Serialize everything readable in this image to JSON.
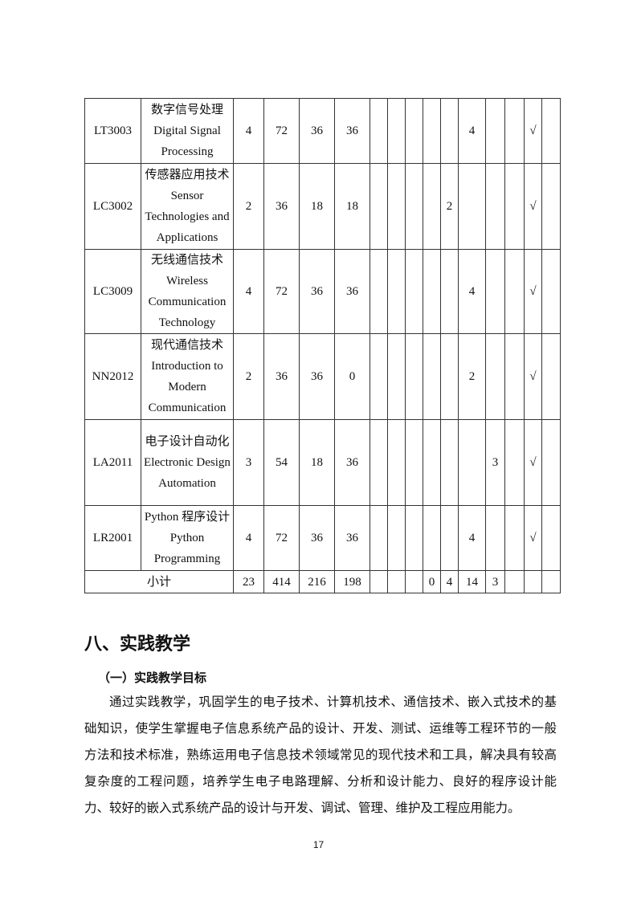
{
  "table": {
    "rows": [
      {
        "code": "LT3003",
        "name_cn": "数字信号处理",
        "name_en": "Digital Signal Processing",
        "credits": "4",
        "hours": "72",
        "theory": "36",
        "practice": "36",
        "semesters": [
          "",
          "",
          "",
          "",
          "",
          "4",
          "",
          "",
          "√",
          ""
        ]
      },
      {
        "code": "LC3002",
        "name_cn": "传感器应用技术",
        "name_en": "Sensor Technologies and Applications",
        "credits": "2",
        "hours": "36",
        "theory": "18",
        "practice": "18",
        "semesters": [
          "",
          "",
          "",
          "",
          "2",
          "",
          "",
          "",
          "√",
          ""
        ]
      },
      {
        "code": "LC3009",
        "name_cn": "无线通信技术",
        "name_en": "Wireless Communication Technology",
        "credits": "4",
        "hours": "72",
        "theory": "36",
        "practice": "36",
        "semesters": [
          "",
          "",
          "",
          "",
          "",
          "4",
          "",
          "",
          "√",
          ""
        ]
      },
      {
        "code": "NN2012",
        "name_cn": "现代通信技术",
        "name_en": "Introduction to Modern Communication",
        "credits": "2",
        "hours": "36",
        "theory": "36",
        "practice": "0",
        "semesters": [
          "",
          "",
          "",
          "",
          "",
          "2",
          "",
          "",
          "√",
          ""
        ]
      },
      {
        "code": "LA2011",
        "name_cn": "电子设计自动化",
        "name_en": "Electronic Design Automation",
        "credits": "3",
        "hours": "54",
        "theory": "18",
        "practice": "36",
        "semesters": [
          "",
          "",
          "",
          "",
          "",
          "",
          "3",
          "",
          "√",
          ""
        ]
      },
      {
        "code": "LR2001",
        "name_cn": "Python 程序设计",
        "name_en": "Python Programming",
        "credits": "4",
        "hours": "72",
        "theory": "36",
        "practice": "36",
        "semesters": [
          "",
          "",
          "",
          "",
          "",
          "4",
          "",
          "",
          "√",
          ""
        ]
      }
    ],
    "subtotal": {
      "label": "小计",
      "credits": "23",
      "hours": "414",
      "theory": "216",
      "practice": "198",
      "semesters": [
        "",
        "",
        "",
        "0",
        "4",
        "14",
        "3",
        "",
        "",
        ""
      ]
    }
  },
  "section_title": "八、实践教学",
  "subsection_title": "（一）实践教学目标",
  "paragraph": "通过实践教学，巩固学生的电子技术、计算机技术、通信技术、嵌入式技术的基础知识，使学生掌握电子信息系统产品的设计、开发、测试、运维等工程环节的一般方法和技术标准，熟练运用电子信息技术领域常见的现代技术和工具，解决具有较高复杂度的工程问题，培养学生电子电路理解、分析和设计能力、良好的程序设计能力、较好的嵌入式系统产品的设计与开发、调试、管理、维护及工程应用能力。",
  "page_number": "17"
}
